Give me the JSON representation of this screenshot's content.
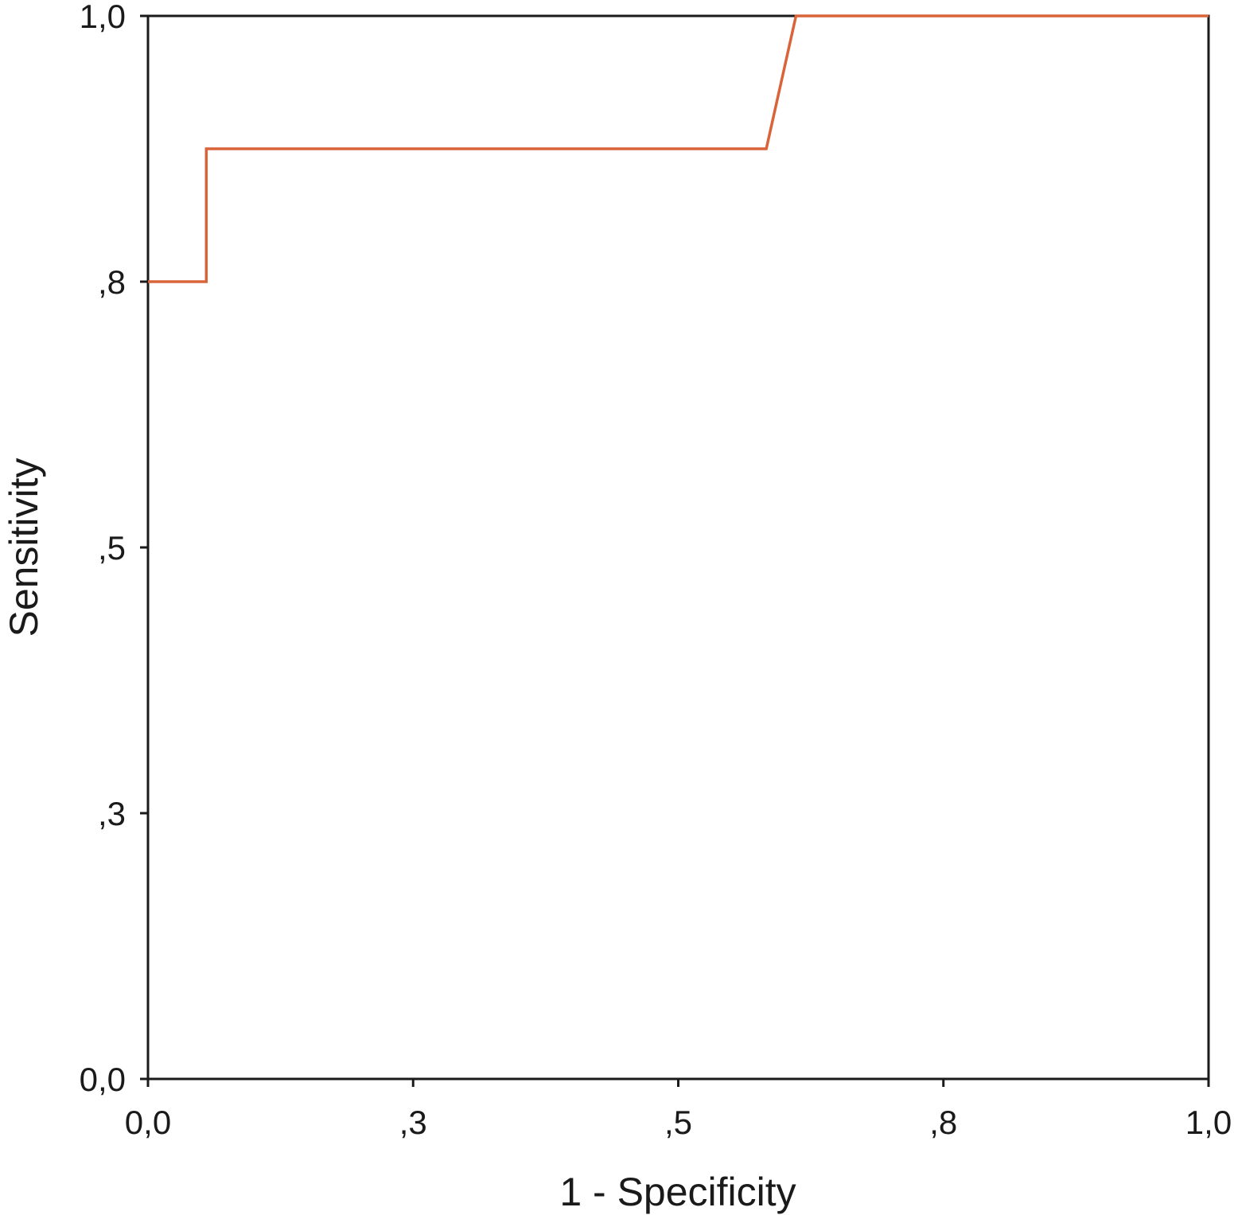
{
  "chart_data": {
    "type": "line",
    "title": "",
    "xlabel": "1 - Specificity",
    "ylabel": "Sensitivity",
    "xlim": [
      0,
      1
    ],
    "ylim": [
      0,
      1
    ],
    "grid": false,
    "x_ticks": [
      {
        "value": 0,
        "label": "0,0"
      },
      {
        "value": 0.25,
        "label": ",3"
      },
      {
        "value": 0.5,
        "label": ",5"
      },
      {
        "value": 0.75,
        "label": ",8"
      },
      {
        "value": 1,
        "label": "1,0"
      }
    ],
    "y_ticks": [
      {
        "value": 0,
        "label": "0,0"
      },
      {
        "value": 0.25,
        "label": ",3"
      },
      {
        "value": 0.5,
        "label": ",5"
      },
      {
        "value": 0.75,
        "label": ",8"
      },
      {
        "value": 1,
        "label": "1,0"
      }
    ],
    "series": [
      {
        "color": "#d9643a",
        "points": [
          [
            0.0,
            0.75
          ],
          [
            0.055,
            0.75
          ],
          [
            0.055,
            0.875
          ],
          [
            0.583,
            0.875
          ],
          [
            0.611,
            1.0
          ],
          [
            1.0,
            1.0
          ]
        ]
      }
    ],
    "axis_color": "#1a1a1a"
  }
}
